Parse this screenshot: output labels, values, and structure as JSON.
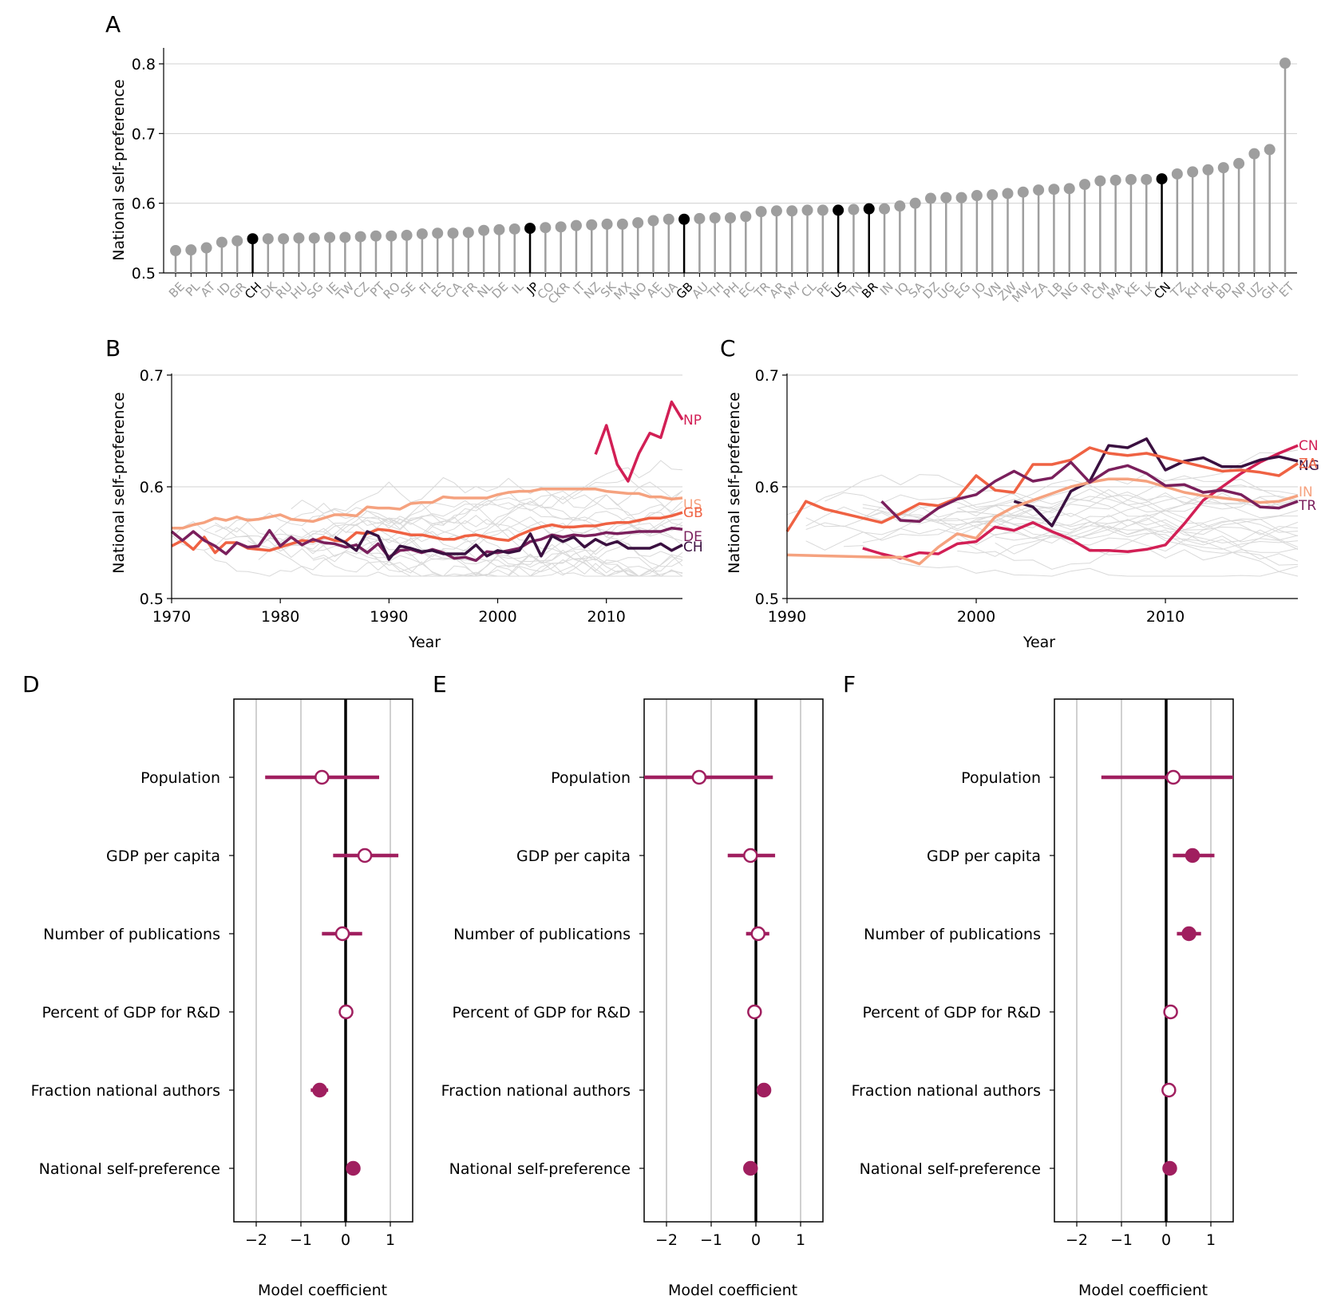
{
  "colors": {
    "gray_stem": "#9e9e9e",
    "highlight": "#000000",
    "grid": "#d0d0d0",
    "faint_line": "#d9d9d9",
    "US": "#f5a27f",
    "GB": "#ef6243",
    "DE": "#7a1f5c",
    "CH": "#3a1040",
    "NP": "#d21f55",
    "CN": "#d21f55",
    "NG": "#3a1040",
    "ZA": "#ef6243",
    "IN": "#f5a27f",
    "TR": "#7a1f5c",
    "coef": "#a01f5f"
  },
  "panel_labels": [
    "A",
    "B",
    "C",
    "D",
    "E",
    "F"
  ],
  "chart_data": [
    {
      "panel": "A",
      "type": "scatter",
      "subtype": "lollipop",
      "ylabel": "National self-preference",
      "ylim": [
        0.5,
        0.8
      ],
      "yticks": [
        "0.5",
        "0.6",
        "0.7",
        "0.8"
      ],
      "grid": "horizontal",
      "categories": [
        "BE",
        "PL",
        "AT",
        "ID",
        "GR",
        "CH",
        "DK",
        "RU",
        "HU",
        "SG",
        "IE",
        "TW",
        "CZ",
        "PT",
        "RO",
        "SE",
        "FI",
        "ES",
        "CA",
        "FR",
        "NL",
        "DE",
        "IL",
        "JP",
        "CO",
        "CKR",
        "IT",
        "NZ",
        "SK",
        "MX",
        "NO",
        "AE",
        "UA",
        "GB",
        "AU",
        "TH",
        "PH",
        "EC",
        "TR",
        "AR",
        "MY",
        "CL",
        "PE",
        "US",
        "TN",
        "BR",
        "IN",
        "IQ",
        "SA",
        "DZ",
        "UG",
        "EG",
        "JO",
        "VN",
        "ZW",
        "MW",
        "ZA",
        "LB",
        "NG",
        "IR",
        "CM",
        "MA",
        "KE",
        "LK",
        "CN",
        "TZ",
        "KH",
        "PK",
        "BD",
        "NP",
        "UZ",
        "GH",
        "ET"
      ],
      "values": [
        0.532,
        0.533,
        0.536,
        0.544,
        0.546,
        0.549,
        0.549,
        0.549,
        0.55,
        0.55,
        0.551,
        0.551,
        0.552,
        0.553,
        0.553,
        0.554,
        0.556,
        0.557,
        0.557,
        0.558,
        0.561,
        0.562,
        0.563,
        0.564,
        0.565,
        0.566,
        0.568,
        0.569,
        0.57,
        0.57,
        0.572,
        0.575,
        0.577,
        0.577,
        0.578,
        0.579,
        0.579,
        0.581,
        0.588,
        0.589,
        0.589,
        0.59,
        0.59,
        0.59,
        0.591,
        0.592,
        0.592,
        0.596,
        0.6,
        0.607,
        0.608,
        0.608,
        0.611,
        0.612,
        0.614,
        0.616,
        0.619,
        0.62,
        0.621,
        0.627,
        0.632,
        0.633,
        0.634,
        0.634,
        0.635,
        0.642,
        0.645,
        0.648,
        0.651,
        0.657,
        0.671,
        0.677,
        0.801
      ],
      "highlighted": [
        "CH",
        "JP",
        "GB",
        "US",
        "BR",
        "CN"
      ]
    },
    {
      "panel": "B",
      "type": "line",
      "xlabel": "Year",
      "ylabel": "National self-preference",
      "xlim": [
        1970,
        2017
      ],
      "ylim": [
        0.5,
        0.7
      ],
      "xticks": [
        "1970",
        "1980",
        "1990",
        "2000",
        "2010"
      ],
      "yticks": [
        "0.5",
        "0.6",
        "0.7"
      ],
      "grid": "horizontal",
      "series": [
        {
          "name": "NP",
          "x": [
            2009,
            2010,
            2011,
            2012,
            2013,
            2014,
            2015,
            2016,
            2017
          ],
          "values": [
            0.629,
            0.655,
            0.62,
            0.605,
            0.63,
            0.648,
            0.644,
            0.676,
            0.66
          ]
        },
        {
          "name": "US",
          "x": [
            1970,
            1971,
            1972,
            1973,
            1974,
            1975,
            1976,
            1977,
            1978,
            1979,
            1980,
            1981,
            1982,
            1983,
            1984,
            1985,
            1986,
            1987,
            1988,
            1989,
            1990,
            1991,
            1992,
            1993,
            1994,
            1995,
            1996,
            1997,
            1998,
            1999,
            2000,
            2001,
            2002,
            2003,
            2004,
            2005,
            2006,
            2007,
            2008,
            2009,
            2010,
            2011,
            2012,
            2013,
            2014,
            2015,
            2016,
            2017
          ],
          "values": [
            0.563,
            0.563,
            0.566,
            0.568,
            0.572,
            0.57,
            0.573,
            0.57,
            0.571,
            0.573,
            0.575,
            0.571,
            0.57,
            0.569,
            0.572,
            0.575,
            0.575,
            0.574,
            0.582,
            0.581,
            0.581,
            0.58,
            0.585,
            0.586,
            0.586,
            0.591,
            0.59,
            0.59,
            0.59,
            0.59,
            0.593,
            0.595,
            0.596,
            0.596,
            0.598,
            0.598,
            0.598,
            0.598,
            0.598,
            0.598,
            0.596,
            0.595,
            0.594,
            0.594,
            0.591,
            0.591,
            0.589,
            0.59
          ]
        },
        {
          "name": "GB",
          "x": [
            1970,
            1971,
            1972,
            1973,
            1974,
            1975,
            1976,
            1977,
            1978,
            1979,
            1980,
            1981,
            1982,
            1983,
            1984,
            1985,
            1986,
            1987,
            1988,
            1989,
            1990,
            1991,
            1992,
            1993,
            1994,
            1995,
            1996,
            1997,
            1998,
            1999,
            2000,
            2001,
            2002,
            2003,
            2004,
            2005,
            2006,
            2007,
            2008,
            2009,
            2010,
            2011,
            2012,
            2013,
            2014,
            2015,
            2016,
            2017
          ],
          "values": [
            0.547,
            0.552,
            0.544,
            0.555,
            0.541,
            0.55,
            0.55,
            0.545,
            0.544,
            0.543,
            0.546,
            0.549,
            0.552,
            0.551,
            0.555,
            0.552,
            0.551,
            0.559,
            0.558,
            0.562,
            0.561,
            0.559,
            0.557,
            0.557,
            0.555,
            0.553,
            0.553,
            0.556,
            0.557,
            0.555,
            0.553,
            0.552,
            0.557,
            0.561,
            0.564,
            0.566,
            0.564,
            0.564,
            0.565,
            0.565,
            0.567,
            0.568,
            0.568,
            0.57,
            0.572,
            0.572,
            0.574,
            0.577
          ]
        },
        {
          "name": "DE",
          "x": [
            1970,
            1971,
            1972,
            1973,
            1974,
            1975,
            1976,
            1977,
            1978,
            1979,
            1980,
            1981,
            1982,
            1983,
            1984,
            1985,
            1986,
            1987,
            1988,
            1989,
            1990,
            1991,
            1992,
            1993,
            1994,
            1995,
            1996,
            1997,
            1998,
            1999,
            2000,
            2001,
            2002,
            2003,
            2004,
            2005,
            2006,
            2007,
            2008,
            2009,
            2010,
            2011,
            2012,
            2013,
            2014,
            2015,
            2016,
            2017
          ],
          "values": [
            0.56,
            0.552,
            0.56,
            0.552,
            0.547,
            0.54,
            0.55,
            0.546,
            0.547,
            0.561,
            0.547,
            0.555,
            0.548,
            0.553,
            0.55,
            0.549,
            0.546,
            0.548,
            0.541,
            0.549,
            0.537,
            0.543,
            0.544,
            0.541,
            0.544,
            0.541,
            0.536,
            0.537,
            0.534,
            0.542,
            0.541,
            0.543,
            0.545,
            0.551,
            0.553,
            0.557,
            0.555,
            0.557,
            0.556,
            0.557,
            0.559,
            0.558,
            0.559,
            0.56,
            0.56,
            0.56,
            0.563,
            0.562
          ]
        },
        {
          "name": "CH",
          "x": [
            1985,
            1986,
            1987,
            1988,
            1989,
            1990,
            1991,
            1992,
            1993,
            1994,
            1995,
            1996,
            1997,
            1998,
            1999,
            2000,
            2001,
            2002,
            2003,
            2004,
            2005,
            2006,
            2007,
            2008,
            2009,
            2010,
            2011,
            2012,
            2013,
            2014,
            2015,
            2016,
            2017
          ],
          "values": [
            0.555,
            0.55,
            0.543,
            0.56,
            0.556,
            0.535,
            0.547,
            0.545,
            0.542,
            0.543,
            0.54,
            0.54,
            0.54,
            0.548,
            0.538,
            0.543,
            0.541,
            0.543,
            0.558,
            0.538,
            0.556,
            0.551,
            0.555,
            0.546,
            0.553,
            0.548,
            0.551,
            0.545,
            0.545,
            0.545,
            0.549,
            0.543,
            0.548
          ]
        }
      ]
    },
    {
      "panel": "C",
      "type": "line",
      "xlabel": "Year",
      "ylabel": "National self-preference",
      "xlim": [
        1990,
        2017
      ],
      "ylim": [
        0.5,
        0.7
      ],
      "xticks": [
        "1990",
        "2000",
        "2010"
      ],
      "yticks": [
        "0.5",
        "0.6",
        "0.7"
      ],
      "grid": "horizontal",
      "series": [
        {
          "name": "CN",
          "x": [
            1994,
            1995,
            1996,
            1997,
            1998,
            1999,
            2000,
            2001,
            2002,
            2003,
            2004,
            2005,
            2006,
            2007,
            2008,
            2009,
            2010,
            2011,
            2012,
            2013,
            2014,
            2015,
            2016,
            2017
          ],
          "values": [
            0.545,
            0.54,
            0.536,
            0.541,
            0.54,
            0.549,
            0.551,
            0.564,
            0.561,
            0.568,
            0.56,
            0.553,
            0.543,
            0.543,
            0.542,
            0.544,
            0.548,
            0.567,
            0.588,
            0.6,
            0.612,
            0.622,
            0.63,
            0.637
          ]
        },
        {
          "name": "NG",
          "x": [
            2002,
            2003,
            2004,
            2005,
            2006,
            2007,
            2008,
            2009,
            2010,
            2011,
            2012,
            2013,
            2014,
            2015,
            2016,
            2017
          ],
          "values": [
            0.587,
            0.582,
            0.565,
            0.596,
            0.605,
            0.637,
            0.635,
            0.643,
            0.615,
            0.623,
            0.626,
            0.618,
            0.618,
            0.624,
            0.627,
            0.623
          ]
        },
        {
          "name": "ZA",
          "x": [
            1990,
            1991,
            1992,
            1993,
            1994,
            1995,
            1996,
            1997,
            1998,
            1999,
            2000,
            2001,
            2002,
            2003,
            2004,
            2005,
            2006,
            2007,
            2008,
            2009,
            2010,
            2011,
            2012,
            2013,
            2014,
            2015,
            2016,
            2017
          ],
          "values": [
            0.56,
            0.587,
            0.58,
            0.576,
            0.572,
            0.568,
            0.576,
            0.585,
            0.583,
            0.59,
            0.61,
            0.597,
            0.595,
            0.62,
            0.62,
            0.624,
            0.635,
            0.63,
            0.628,
            0.63,
            0.626,
            0.622,
            0.618,
            0.614,
            0.615,
            0.613,
            0.61,
            0.621
          ]
        },
        {
          "name": "IN",
          "x": [
            1990,
            1995,
            1996,
            1997,
            1998,
            1999,
            2000,
            2001,
            2002,
            2003,
            2004,
            2005,
            2006,
            2007,
            2008,
            2009,
            2010,
            2011,
            2012,
            2013,
            2014,
            2015,
            2016,
            2017
          ],
          "values": [
            0.539,
            0.537,
            0.537,
            0.531,
            0.546,
            0.558,
            0.554,
            0.573,
            0.582,
            0.588,
            0.594,
            0.6,
            0.604,
            0.607,
            0.607,
            0.605,
            0.6,
            0.595,
            0.592,
            0.59,
            0.588,
            0.586,
            0.587,
            0.592
          ]
        },
        {
          "name": "TR",
          "x": [
            1995,
            1996,
            1997,
            1998,
            1999,
            2000,
            2001,
            2002,
            2003,
            2004,
            2005,
            2006,
            2007,
            2008,
            2009,
            2010,
            2011,
            2012,
            2013,
            2014,
            2015,
            2016,
            2017
          ],
          "values": [
            0.587,
            0.57,
            0.569,
            0.581,
            0.589,
            0.593,
            0.605,
            0.614,
            0.605,
            0.608,
            0.622,
            0.604,
            0.615,
            0.619,
            0.612,
            0.601,
            0.602,
            0.595,
            0.597,
            0.593,
            0.582,
            0.581,
            0.587
          ]
        }
      ]
    },
    {
      "panel": "D",
      "type": "scatter",
      "subtype": "coefficient",
      "xlabel": "Model coefficient",
      "xlim": [
        -2.5,
        1.5
      ],
      "xticks": [
        "−2",
        "−1",
        "0",
        "1"
      ],
      "categories": [
        "Population",
        "GDP per capita",
        "Number of publications",
        "Percent of GDP for R&D",
        "Fraction national authors",
        "National self-preference"
      ],
      "values": [
        -0.53,
        0.43,
        -0.07,
        0.01,
        -0.58,
        0.17
      ],
      "ci_low": [
        -1.8,
        -0.28,
        -0.53,
        -0.06,
        -0.78,
        0.05
      ],
      "ci_high": [
        0.75,
        1.18,
        0.37,
        0.08,
        -0.39,
        0.29
      ],
      "significant": [
        false,
        false,
        false,
        false,
        true,
        true
      ]
    },
    {
      "panel": "E",
      "type": "scatter",
      "subtype": "coefficient",
      "xlabel": "Model coefficient",
      "xlim": [
        -2.5,
        1.5
      ],
      "xticks": [
        "−2",
        "−1",
        "0",
        "1"
      ],
      "categories": [
        "Population",
        "GDP per capita",
        "Number of publications",
        "Percent of GDP for R&D",
        "Fraction national authors",
        "National self-preference"
      ],
      "values": [
        -1.27,
        -0.12,
        0.05,
        -0.03,
        0.18,
        -0.12
      ],
      "ci_low": [
        -2.5,
        -0.63,
        -0.22,
        -0.09,
        0.05,
        -0.23
      ],
      "ci_high": [
        0.38,
        0.43,
        0.3,
        0.04,
        0.31,
        -0.01
      ],
      "significant": [
        false,
        false,
        false,
        false,
        true,
        true
      ]
    },
    {
      "panel": "F",
      "type": "scatter",
      "subtype": "coefficient",
      "xlabel": "Model coefficient",
      "xlim": [
        -2.5,
        1.5
      ],
      "xticks": [
        "−2",
        "−1",
        "0",
        "1"
      ],
      "categories": [
        "Population",
        "GDP per capita",
        "Number of publications",
        "Percent of GDP for R&D",
        "Fraction national authors",
        "National self-preference"
      ],
      "values": [
        0.16,
        0.59,
        0.51,
        0.1,
        0.06,
        0.08
      ],
      "ci_low": [
        -1.45,
        0.15,
        0.24,
        0.03,
        -0.09,
        0.01
      ],
      "ci_high": [
        1.55,
        1.08,
        0.78,
        0.17,
        0.21,
        0.15
      ],
      "significant": [
        false,
        true,
        true,
        false,
        false,
        true
      ]
    }
  ]
}
